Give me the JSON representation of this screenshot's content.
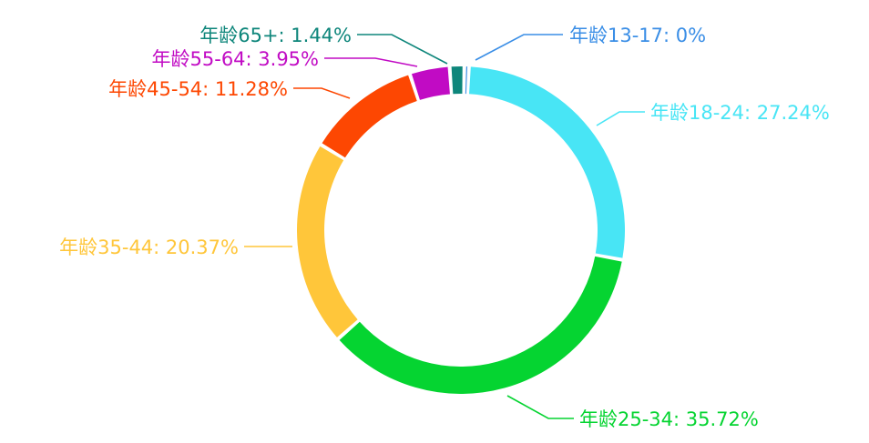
{
  "chart_data": {
    "type": "pie",
    "variant": "donut",
    "title": "",
    "legend": "none",
    "slices": [
      {
        "label": "年龄13-17: 0%",
        "value": 0.0,
        "color": "#3a8ee6"
      },
      {
        "label": "年龄18-24: 27.24%",
        "value": 27.24,
        "color": "#48e5f5"
      },
      {
        "label": "年龄25-34: 35.72%",
        "value": 35.72,
        "color": "#05d431"
      },
      {
        "label": "年龄35-44: 20.37%",
        "value": 20.37,
        "color": "#ffc63a"
      },
      {
        "label": "年龄45-54: 11.28%",
        "value": 11.28,
        "color": "#fd4702"
      },
      {
        "label": "年龄55-64: 3.95%",
        "value": 3.95,
        "color": "#c10bc4"
      },
      {
        "label": "年龄65+: 1.44%",
        "value": 1.44,
        "color": "#0e867b"
      }
    ]
  }
}
